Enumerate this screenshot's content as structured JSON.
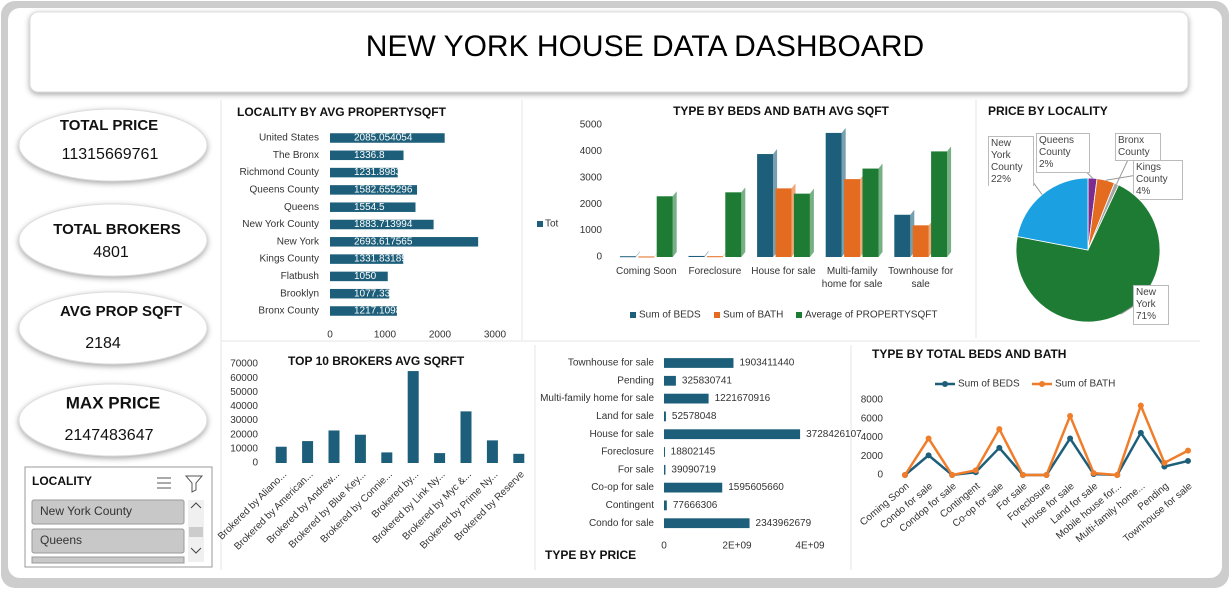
{
  "header": {
    "title": "NEW YORK HOUSE DATA DASHBOARD"
  },
  "kpis": [
    {
      "label": "TOTAL PRICE",
      "value": 11315669761
    },
    {
      "label": "TOTAL BROKERS",
      "value": 4801
    },
    {
      "label": "AVG PROP SQFT",
      "value": 2184
    },
    {
      "label": "MAX PRICE",
      "value": 2147483647
    }
  ],
  "slicer": {
    "title": "LOCALITY",
    "items": [
      "New York County",
      "Queens"
    ]
  },
  "chart_data": [
    {
      "type": "hbar",
      "title": "LOCALITY BY  AVG PROPERTYSQFT",
      "categories": [
        "United States",
        "The Bronx",
        "Richmond County",
        "Queens County",
        "Queens",
        "New York County",
        "New York",
        "Kings County",
        "Flatbush",
        "Brooklyn",
        "Bronx County"
      ],
      "series": [
        {
          "name": "Tot",
          "color": "#1d5f7a",
          "values": [
            2085.054054,
            1336.8,
            1231.898305,
            1582.655296,
            1554.5,
            1883.713994,
            2693.617565,
            1331.831897,
            1050,
            1077.333333,
            1217.10989
          ]
        }
      ],
      "xlim": [
        0,
        3000
      ],
      "xticks": [
        0,
        1000,
        2000,
        3000
      ]
    },
    {
      "type": "bar",
      "title": "TYPE BY BEDS AND BATH AVG SQFT",
      "categories": [
        "Coming Soon",
        "Foreclosure",
        "House for sale",
        "Multi-family home for sale",
        "Townhouse for sale"
      ],
      "series": [
        {
          "name": "Sum of BEDS",
          "color": "#1d5f7a",
          "values": [
            30,
            40,
            3900,
            4700,
            1600
          ]
        },
        {
          "name": "Sum of BATH",
          "color": "#e46c21",
          "values": [
            20,
            30,
            2600,
            2950,
            1200
          ]
        },
        {
          "name": "Average of PROPERTYSQFT",
          "color": "#1e7b34",
          "values": [
            2300,
            2450,
            2400,
            3350,
            4000
          ]
        }
      ],
      "ylim": [
        0,
        5000
      ],
      "yticks": [
        0,
        1000,
        2000,
        3000,
        4000,
        5000
      ]
    },
    {
      "type": "pie",
      "title": "PRICE BY LOCALITY",
      "categories": [
        "Queens County",
        "Kings County",
        "Bronx County",
        "New York",
        "New York County"
      ],
      "values": [
        2,
        4,
        1,
        71,
        22
      ],
      "value_labels": [
        "2%",
        "4%",
        null,
        "71%",
        "22%"
      ],
      "colors": [
        "#7b2c8e",
        "#e46c21",
        "#a6a6a6",
        "#1e7b34",
        "#1ba1e2"
      ]
    },
    {
      "type": "bar",
      "title": "TOP 10 BROKERS AVG SQRFT",
      "categories": [
        "Brokered by Aliano...",
        "Brokered by American...",
        "Brokered by Andrew...",
        "Brokered by Blue Key...",
        "Brokered by Connie...",
        "Brokered by...",
        "Brokered by Link Ny...",
        "Brokered by Myc &...",
        "Brokered by Prime Ny...",
        "Brokered by Reserve"
      ],
      "values": [
        11500,
        15500,
        23000,
        20000,
        7500,
        65000,
        7000,
        36500,
        16000,
        6500
      ],
      "color": "#1d5f7a",
      "ylim": [
        0,
        70000
      ],
      "yticks": [
        0,
        10000,
        20000,
        30000,
        40000,
        50000,
        60000,
        70000
      ]
    },
    {
      "type": "hbar",
      "title": "TYPE BY PRICE",
      "categories": [
        "Townhouse for sale",
        "Pending",
        "Multi-family home for sale",
        "Land for sale",
        "House for sale",
        "Foreclosure",
        "For sale",
        "Co-op for sale",
        "Contingent",
        "Condo for sale"
      ],
      "values": [
        1903411440,
        325830741,
        1221670916,
        52578048,
        3728426107,
        18802145,
        39090719,
        1595605660,
        77666306,
        2343962679
      ],
      "color": "#1d5f7a",
      "xlim": [
        0,
        4000000000
      ],
      "xticks": [
        0,
        {
          "value": 2000000000,
          "label": "2E+09"
        },
        {
          "value": 4000000000,
          "label": "4E+09"
        }
      ]
    },
    {
      "type": "line",
      "title": "TYPE BY TOTAL BEDS AND BATH",
      "categories": [
        "Coming Soon",
        "Condo for sale",
        "Condop for sale",
        "Contingent",
        "Co-op for sale",
        "For sale",
        "Foreclosure",
        "House for sale",
        "Land for sale",
        "Mobile house for...",
        "Multi-family home...",
        "Pending",
        "Townhouse for sale"
      ],
      "series": [
        {
          "name": "Sum of BEDS",
          "color": "#1d5f7a",
          "values": [
            0,
            2100,
            0,
            300,
            2900,
            0,
            0,
            3900,
            100,
            0,
            4500,
            900,
            1500
          ]
        },
        {
          "name": "Sum of BATH",
          "color": "#f07d2a",
          "values": [
            0,
            3900,
            0,
            500,
            4900,
            0,
            0,
            6300,
            200,
            0,
            7400,
            1300,
            2600
          ]
        }
      ],
      "ylim": [
        0,
        8000
      ],
      "yticks": [
        0,
        2000,
        4000,
        6000,
        8000
      ]
    }
  ]
}
